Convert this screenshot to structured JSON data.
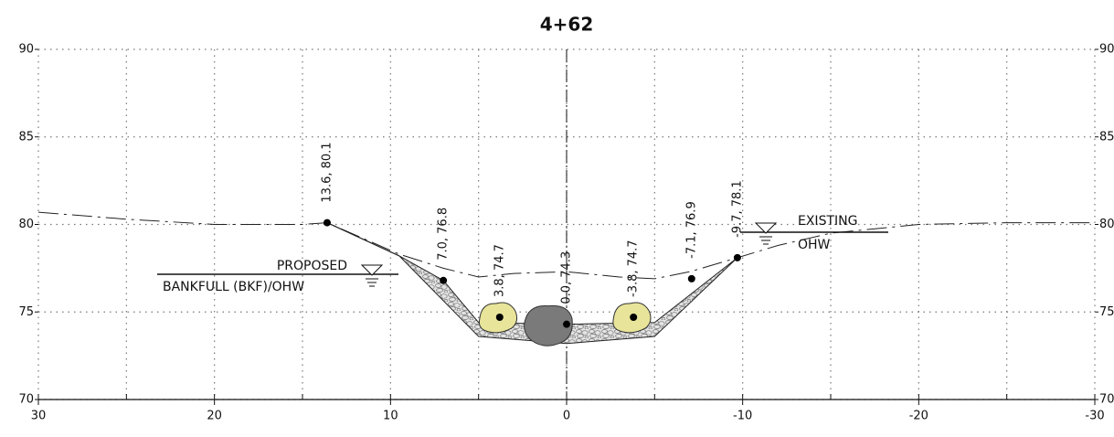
{
  "chart_data": {
    "type": "cross-section",
    "title": "4+62",
    "xlim": [
      30,
      -30
    ],
    "ylim": [
      70,
      90
    ],
    "xticks": [
      30,
      20,
      10,
      0,
      -10,
      -20,
      -30
    ],
    "xminorticks": [
      25,
      15,
      5,
      -5,
      -15,
      -25
    ],
    "yticks": [
      70,
      75,
      80,
      85,
      90
    ],
    "grid": true,
    "points": [
      {
        "label": "13.6, 80.1",
        "x": 13.6,
        "y": 80.1
      },
      {
        "label": "7.0, 76.8",
        "x": 7.0,
        "y": 76.8
      },
      {
        "label": "3.8, 74.7",
        "x": 3.8,
        "y": 74.7
      },
      {
        "label": "0.0, 74.3",
        "x": 0.0,
        "y": 74.3
      },
      {
        "label": "-3.8, 74.7",
        "x": -3.8,
        "y": 74.7
      },
      {
        "label": "-7.1, 76.9",
        "x": -7.1,
        "y": 76.9
      },
      {
        "label": "-9.7, 78.1",
        "x": -9.7,
        "y": 78.1
      }
    ],
    "existing_ground": {
      "x": [
        30,
        25,
        20,
        15,
        13.6,
        9.5,
        7,
        5,
        3,
        0,
        -3,
        -5,
        -7,
        -9.7,
        -12,
        -15,
        -20,
        -25,
        -30
      ],
      "y": [
        80.7,
        80.3,
        80.0,
        80.0,
        80.1,
        78.3,
        77.5,
        77.0,
        77.2,
        77.3,
        77.0,
        76.9,
        77.3,
        78.1,
        78.8,
        79.5,
        80.0,
        80.1,
        80.1
      ]
    },
    "proposed_grade": {
      "x": [
        13.6,
        9.5
      ],
      "y": [
        80.1,
        78.2
      ]
    },
    "channel": {
      "x": [
        9.5,
        5.0,
        0,
        -5.0,
        -9.7,
        -5.0,
        0,
        5.0,
        7.0
      ],
      "y": [
        78.2,
        73.6,
        73.2,
        73.6,
        78.1,
        74.4,
        74.3,
        74.4,
        76.8
      ]
    },
    "annotations": {
      "proposed": "PROPOSED",
      "bankfull": "BANKFULL (BKF)/OHW",
      "existing": "EXISTING",
      "ohw": "OHW"
    }
  }
}
